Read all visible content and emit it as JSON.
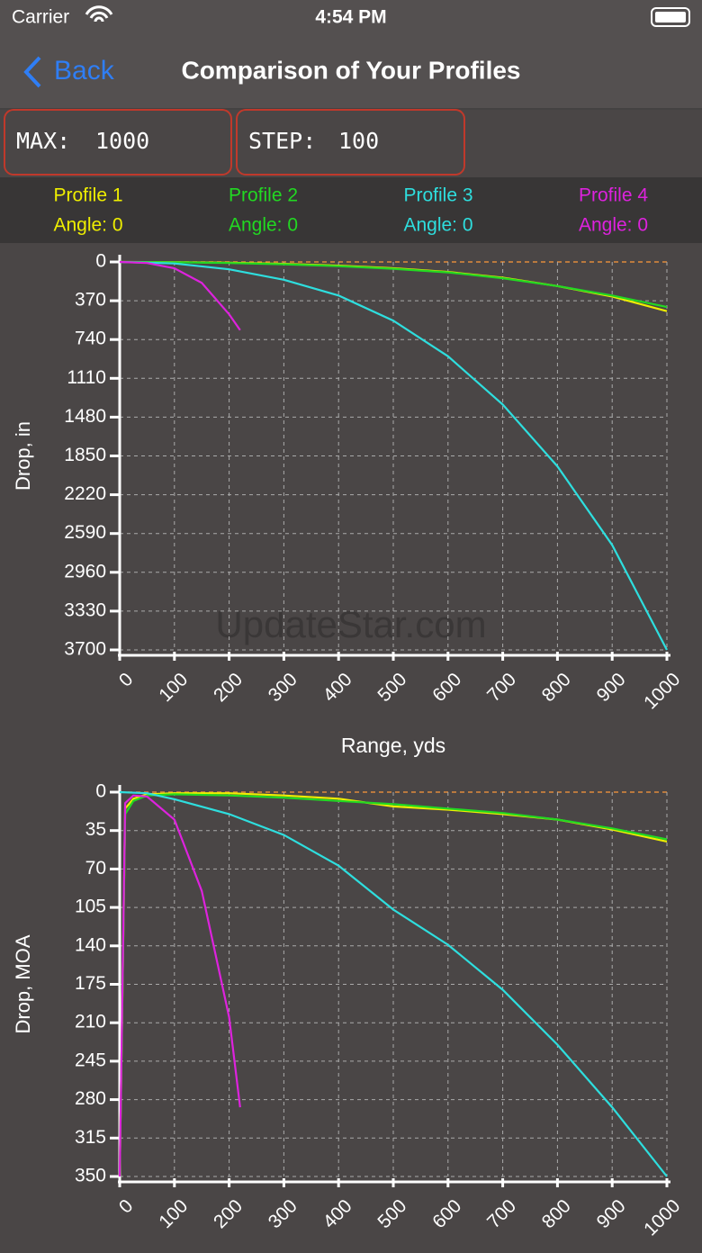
{
  "status_bar": {
    "carrier": "Carrier",
    "time": "4:54 PM"
  },
  "nav": {
    "back": "Back",
    "title": "Comparison of Your Profiles"
  },
  "fields": [
    {
      "label": "MAX:",
      "value": "1000"
    },
    {
      "label": "STEP:",
      "value": "100"
    }
  ],
  "watermark": "UpdateStar.com",
  "chart_data": [
    {
      "type": "line",
      "ylabel": "Drop, in",
      "xlabel": "Range, yds",
      "xlim": [
        0,
        1000
      ],
      "ylim": [
        0,
        3700
      ],
      "y_inverted": true,
      "grid": true,
      "xticks": [
        0,
        100,
        200,
        300,
        400,
        500,
        600,
        700,
        800,
        900,
        1000
      ],
      "yticks": [
        0,
        370,
        740,
        1110,
        1480,
        1850,
        2220,
        2590,
        2960,
        3330,
        3700
      ],
      "series": [
        {
          "name": "Profile 1",
          "angle": "Angle: 0",
          "color": "#eeee00",
          "x": [
            0,
            100,
            200,
            300,
            400,
            500,
            600,
            700,
            800,
            900,
            1000
          ],
          "values": [
            0,
            2,
            8,
            18,
            35,
            60,
            95,
            150,
            230,
            330,
            470
          ]
        },
        {
          "name": "Profile 2",
          "angle": "Angle: 0",
          "color": "#22d822",
          "x": [
            0,
            100,
            200,
            300,
            400,
            500,
            600,
            700,
            800,
            900,
            1000
          ],
          "values": [
            0,
            3,
            10,
            22,
            40,
            65,
            100,
            155,
            230,
            320,
            430
          ]
        },
        {
          "name": "Profile 3",
          "angle": "Angle: 0",
          "color": "#2edede",
          "x": [
            0,
            100,
            200,
            300,
            400,
            500,
            600,
            700,
            800,
            900,
            1000
          ],
          "values": [
            0,
            15,
            70,
            170,
            320,
            560,
            900,
            1360,
            1950,
            2700,
            3700
          ]
        },
        {
          "name": "Profile 4",
          "angle": "Angle: 0",
          "color": "#dd22dd",
          "x": [
            0,
            50,
            100,
            150,
            200,
            220
          ],
          "values": [
            0,
            10,
            60,
            200,
            500,
            650
          ]
        }
      ]
    },
    {
      "type": "line",
      "ylabel": "Drop, MOA",
      "xlim": [
        0,
        1000
      ],
      "ylim": [
        0,
        350
      ],
      "y_inverted": true,
      "grid": true,
      "xticks": [
        0,
        100,
        200,
        300,
        400,
        500,
        600,
        700,
        800,
        900,
        1000
      ],
      "yticks": [
        0,
        35,
        70,
        105,
        140,
        175,
        210,
        245,
        280,
        315,
        350
      ],
      "series": [
        {
          "color": "#eeee00",
          "x": [
            0,
            10,
            25,
            50,
            100,
            200,
            300,
            400,
            500,
            600,
            700,
            800,
            900,
            1000
          ],
          "values": [
            350,
            15,
            6,
            2,
            1,
            1,
            3,
            6,
            13,
            16,
            20,
            25,
            34,
            45
          ]
        },
        {
          "color": "#22d822",
          "x": [
            0,
            10,
            25,
            50,
            100,
            200,
            300,
            400,
            500,
            600,
            700,
            800,
            900,
            1000
          ],
          "values": [
            350,
            20,
            8,
            3,
            2,
            3,
            5,
            8,
            11,
            15,
            19,
            25,
            33,
            43
          ]
        },
        {
          "color": "#2edede",
          "x": [
            0,
            50,
            100,
            200,
            300,
            400,
            500,
            600,
            700,
            800,
            900,
            1000
          ],
          "values": [
            0,
            1,
            6.5,
            20,
            39,
            67,
            107,
            139,
            180,
            230,
            287,
            350
          ]
        },
        {
          "color": "#dd22dd",
          "x": [
            0,
            10,
            25,
            50,
            100,
            150,
            200,
            220
          ],
          "values": [
            350,
            10,
            3,
            4,
            25,
            90,
            205,
            287
          ]
        }
      ]
    }
  ]
}
